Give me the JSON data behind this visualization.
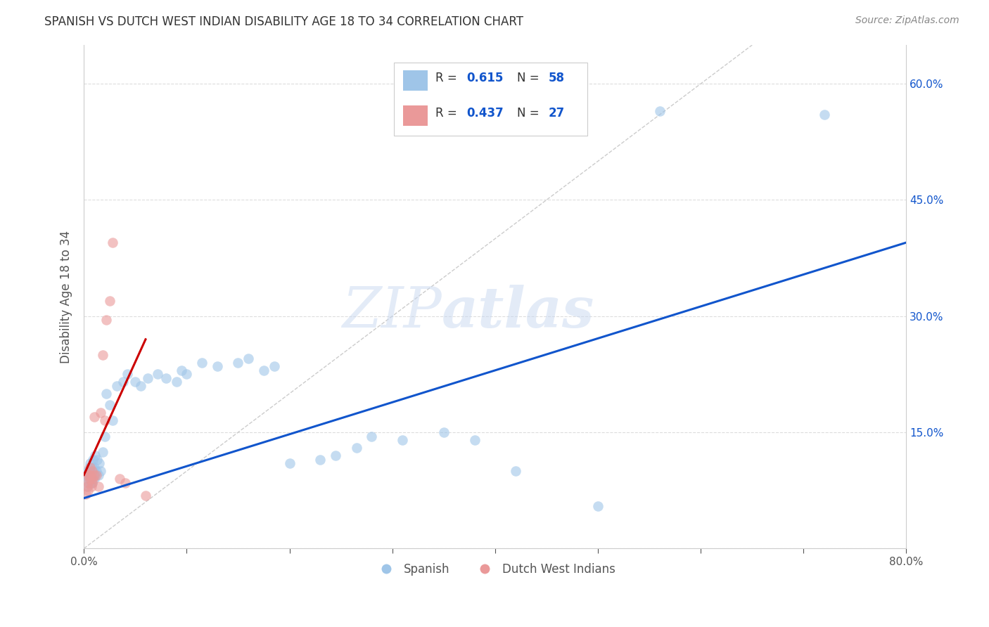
{
  "title": "SPANISH VS DUTCH WEST INDIAN DISABILITY AGE 18 TO 34 CORRELATION CHART",
  "source": "Source: ZipAtlas.com",
  "ylabel": "Disability Age 18 to 34",
  "xlim": [
    0,
    0.8
  ],
  "ylim": [
    0,
    0.65
  ],
  "xtick_positions": [
    0.0,
    0.1,
    0.2,
    0.3,
    0.4,
    0.5,
    0.6,
    0.7,
    0.8
  ],
  "xticklabels": [
    "0.0%",
    "",
    "",
    "",
    "",
    "",
    "",
    "",
    "80.0%"
  ],
  "ytick_positions": [
    0.0,
    0.15,
    0.3,
    0.45,
    0.6
  ],
  "yticklabels": [
    "",
    "15.0%",
    "30.0%",
    "45.0%",
    "60.0%"
  ],
  "blue_color": "#9fc5e8",
  "pink_color": "#ea9999",
  "line_blue": "#1155cc",
  "line_pink": "#cc0000",
  "diag_color": "#cccccc",
  "blue_line_x": [
    0.0,
    0.8
  ],
  "blue_line_y": [
    0.065,
    0.395
  ],
  "pink_line_x": [
    0.0,
    0.06
  ],
  "pink_line_y": [
    0.095,
    0.27
  ],
  "diag_line_x": [
    0.0,
    0.65
  ],
  "diag_line_y": [
    0.0,
    0.65
  ],
  "spanish_x": [
    0.002,
    0.003,
    0.004,
    0.004,
    0.005,
    0.005,
    0.005,
    0.006,
    0.006,
    0.007,
    0.007,
    0.008,
    0.008,
    0.009,
    0.009,
    0.01,
    0.01,
    0.011,
    0.011,
    0.012,
    0.013,
    0.014,
    0.015,
    0.016,
    0.018,
    0.02,
    0.022,
    0.025,
    0.028,
    0.032,
    0.038,
    0.042,
    0.05,
    0.055,
    0.062,
    0.072,
    0.08,
    0.09,
    0.095,
    0.1,
    0.115,
    0.13,
    0.15,
    0.16,
    0.175,
    0.185,
    0.2,
    0.23,
    0.245,
    0.265,
    0.28,
    0.31,
    0.35,
    0.38,
    0.42,
    0.5,
    0.56,
    0.72
  ],
  "spanish_y": [
    0.095,
    0.08,
    0.09,
    0.1,
    0.085,
    0.095,
    0.105,
    0.09,
    0.11,
    0.085,
    0.095,
    0.105,
    0.085,
    0.1,
    0.115,
    0.09,
    0.105,
    0.095,
    0.12,
    0.1,
    0.115,
    0.095,
    0.11,
    0.1,
    0.125,
    0.145,
    0.2,
    0.185,
    0.165,
    0.21,
    0.215,
    0.225,
    0.215,
    0.21,
    0.22,
    0.225,
    0.22,
    0.215,
    0.23,
    0.225,
    0.24,
    0.235,
    0.24,
    0.245,
    0.23,
    0.235,
    0.11,
    0.115,
    0.12,
    0.13,
    0.145,
    0.14,
    0.15,
    0.14,
    0.1,
    0.055,
    0.565,
    0.56
  ],
  "dutch_x": [
    0.002,
    0.003,
    0.003,
    0.004,
    0.004,
    0.005,
    0.005,
    0.006,
    0.006,
    0.007,
    0.007,
    0.008,
    0.008,
    0.009,
    0.01,
    0.01,
    0.012,
    0.014,
    0.016,
    0.018,
    0.02,
    0.022,
    0.025,
    0.028,
    0.035,
    0.04,
    0.06
  ],
  "dutch_y": [
    0.07,
    0.095,
    0.08,
    0.085,
    0.075,
    0.09,
    0.095,
    0.095,
    0.105,
    0.08,
    0.09,
    0.1,
    0.085,
    0.09,
    0.17,
    0.095,
    0.095,
    0.08,
    0.175,
    0.25,
    0.165,
    0.295,
    0.32,
    0.395,
    0.09,
    0.085,
    0.068
  ]
}
